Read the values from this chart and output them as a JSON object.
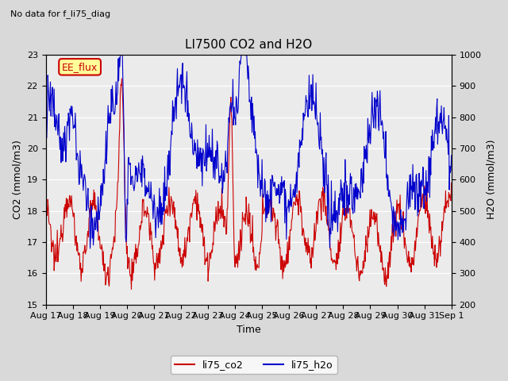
{
  "title": "LI7500 CO2 and H2O",
  "subtitle": "No data for f_li75_diag",
  "xlabel": "Time",
  "ylabel_left": "CO2 (mmol/m3)",
  "ylabel_right": "H2O (mmol/m3)",
  "ylim_left": [
    15.0,
    23.0
  ],
  "ylim_right": [
    200,
    1000
  ],
  "yticks_left": [
    15.0,
    16.0,
    17.0,
    18.0,
    19.0,
    20.0,
    21.0,
    22.0,
    23.0
  ],
  "yticks_right": [
    200,
    300,
    400,
    500,
    600,
    700,
    800,
    900,
    1000
  ],
  "xtick_labels": [
    "Aug 17",
    "Aug 18",
    "Aug 19",
    "Aug 20",
    "Aug 21",
    "Aug 22",
    "Aug 23",
    "Aug 24",
    "Aug 25",
    "Aug 26",
    "Aug 27",
    "Aug 28",
    "Aug 29",
    "Aug 30",
    "Aug 31",
    "Sep 1"
  ],
  "color_co2": "#cc0000",
  "color_h2o": "#0000cc",
  "legend_label_co2": "li75_co2",
  "legend_label_h2o": "li75_h2o",
  "annotation_text": "EE_flux",
  "annotation_color": "#cc0000",
  "annotation_bg": "#ffff99",
  "fig_facecolor": "#d9d9d9",
  "plot_bg_color": "#ebebeb"
}
